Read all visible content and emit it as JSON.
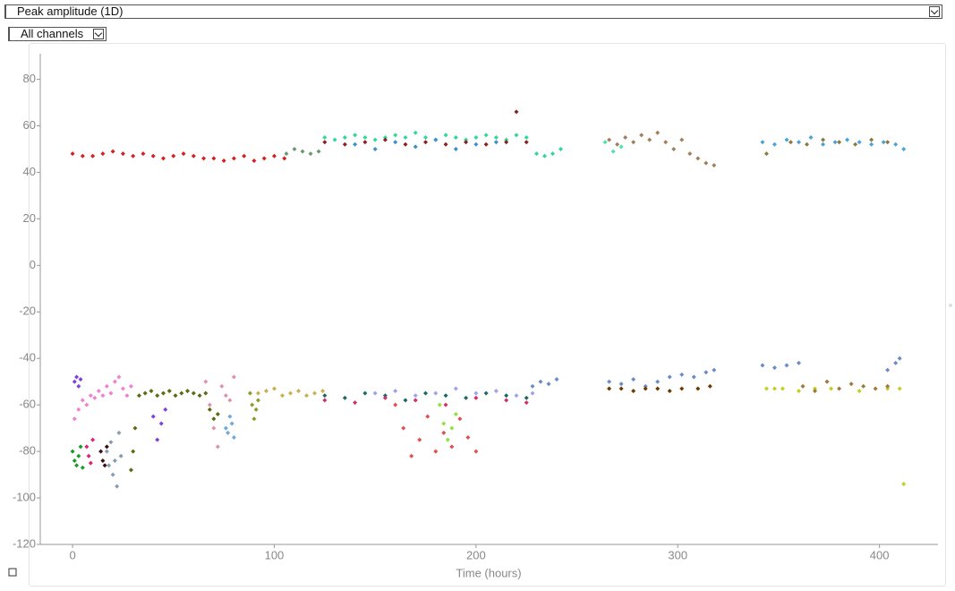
{
  "controls": {
    "measure": "Peak amplitude (1D)",
    "channels": "All channels"
  },
  "chart_data": {
    "type": "scatter",
    "x_label": "Time (hours)",
    "xlim": [
      -16,
      429
    ],
    "ylim": [
      -120,
      91
    ],
    "xticks": [
      0,
      100,
      200,
      300,
      400
    ],
    "yticks": [
      -120,
      -100,
      -80,
      -60,
      -40,
      -20,
      0,
      20,
      40,
      60,
      80
    ],
    "grid": false,
    "series": [
      {
        "color": "#d42020",
        "x": [
          0,
          5,
          10,
          15,
          20,
          25,
          30,
          35,
          40,
          45,
          50,
          55,
          60,
          65,
          70,
          75,
          80,
          85,
          90,
          95,
          100,
          105
        ],
        "values": [
          48,
          47,
          47,
          48,
          49,
          48,
          47,
          48,
          47,
          46,
          47,
          48,
          47,
          46,
          46,
          45,
          46,
          47,
          45,
          46,
          47,
          46
        ]
      },
      {
        "color": "#6a9a70",
        "x": [
          106,
          110,
          114,
          118,
          122
        ],
        "values": [
          48,
          50,
          49,
          48,
          49
        ]
      },
      {
        "color": "#2fd89a",
        "x": [
          125,
          130,
          135,
          140,
          145,
          150,
          155,
          160,
          165,
          170,
          175,
          180,
          185,
          190,
          195,
          200,
          205,
          210,
          215,
          220,
          225,
          230,
          234,
          238,
          242
        ],
        "values": [
          55,
          54,
          55,
          56,
          55,
          54,
          55,
          56,
          55,
          57,
          55,
          54,
          56,
          55,
          54,
          55,
          56,
          55,
          54,
          56,
          55,
          48,
          47,
          48,
          50
        ]
      },
      {
        "color": "#8b2020",
        "x": [
          125,
          135,
          145,
          155,
          165,
          175,
          185,
          195,
          205,
          215,
          220,
          225
        ],
        "values": [
          53,
          52,
          53,
          54,
          52,
          53,
          52,
          53,
          52,
          53,
          66,
          53
        ]
      },
      {
        "color": "#3a8fd0",
        "x": [
          140,
          150,
          160,
          170,
          180,
          190,
          200,
          210
        ],
        "values": [
          52,
          50,
          53,
          51,
          54,
          50,
          52,
          53
        ]
      },
      {
        "color": "#a0805a",
        "x": [
          266,
          270,
          274,
          278,
          282,
          286,
          290,
          294,
          298,
          302,
          306,
          310,
          314,
          318
        ],
        "values": [
          54,
          52,
          55,
          53,
          56,
          54,
          57,
          53,
          50,
          54,
          48,
          46,
          44,
          43
        ]
      },
      {
        "color": "#50e0b0",
        "x": [
          264,
          268,
          272
        ],
        "values": [
          53,
          49,
          51
        ]
      },
      {
        "color": "#4aa3d4",
        "x": [
          342,
          348,
          354,
          360,
          366,
          372,
          378,
          384,
          390,
          396,
          402,
          408,
          412
        ],
        "values": [
          53,
          52,
          54,
          53,
          55,
          52,
          53,
          54,
          53,
          52,
          53,
          52,
          50
        ]
      },
      {
        "color": "#8a7a40",
        "x": [
          344,
          356,
          364,
          372,
          380,
          388,
          396,
          404
        ],
        "values": [
          48,
          53,
          52,
          54,
          53,
          52,
          54,
          53
        ]
      },
      {
        "color": "#1a9a2a",
        "x": [
          0,
          1,
          2,
          3,
          4,
          5
        ],
        "values": [
          -80,
          -84,
          -86,
          -82,
          -78,
          -87
        ]
      },
      {
        "color": "#8040e0",
        "x": [
          1,
          2,
          3,
          4,
          40,
          42,
          44,
          46
        ],
        "values": [
          -50,
          -48,
          -52,
          -49,
          -65,
          -75,
          -68,
          -62
        ]
      },
      {
        "color": "#f080d0",
        "x": [
          1,
          3,
          5,
          7,
          9,
          11,
          13,
          15,
          17,
          19,
          21,
          23,
          25,
          27,
          29
        ],
        "values": [
          -66,
          -62,
          -58,
          -60,
          -56,
          -57,
          -54,
          -56,
          -52,
          -55,
          -50,
          -48,
          -53,
          -56,
          -52
        ]
      },
      {
        "color": "#e0207a",
        "x": [
          7,
          8,
          9,
          10
        ],
        "values": [
          -78,
          -82,
          -85,
          -75
        ]
      },
      {
        "color": "#3a1010",
        "x": [
          14,
          15,
          16,
          17
        ],
        "values": [
          -80,
          -84,
          -86,
          -78
        ]
      },
      {
        "color": "#8a9ab0",
        "x": [
          17,
          18,
          19,
          20,
          21,
          22,
          23,
          24
        ],
        "values": [
          -80,
          -86,
          -76,
          -90,
          -84,
          -95,
          -72,
          -82
        ]
      },
      {
        "color": "#5a6a10",
        "x": [
          29,
          30,
          31,
          33,
          36,
          39,
          42,
          45,
          48,
          51,
          54,
          57,
          60,
          63,
          66,
          68,
          70,
          72
        ],
        "values": [
          -88,
          -80,
          -70,
          -56,
          -55,
          -54,
          -56,
          -55,
          -54,
          -56,
          -55,
          -54,
          -55,
          -56,
          -55,
          -62,
          -66,
          -64
        ]
      },
      {
        "color": "#e090b0",
        "x": [
          66,
          68,
          70,
          72,
          74,
          76,
          78,
          80
        ],
        "values": [
          -50,
          -60,
          -70,
          -78,
          -52,
          -56,
          -58,
          -48
        ]
      },
      {
        "color": "#70a8d8",
        "x": [
          76,
          77,
          78,
          79,
          80
        ],
        "values": [
          -70,
          -72,
          -65,
          -68,
          -74
        ]
      },
      {
        "color": "#8a9a30",
        "x": [
          88,
          89,
          90,
          91,
          92
        ],
        "values": [
          -55,
          -60,
          -66,
          -62,
          -58
        ]
      },
      {
        "color": "#c8b050",
        "x": [
          92,
          96,
          100,
          104,
          108,
          112,
          116,
          120,
          124
        ],
        "values": [
          -55,
          -54,
          -53,
          -56,
          -55,
          -54,
          -56,
          -55,
          -54
        ]
      },
      {
        "color": "#1a6a60",
        "x": [
          125,
          135,
          145,
          155,
          165,
          175,
          185,
          195,
          205,
          215,
          225
        ],
        "values": [
          -56,
          -57,
          -55,
          -56,
          -58,
          -55,
          -56,
          -57,
          -55,
          -56,
          -57
        ]
      },
      {
        "color": "#a0a0f0",
        "x": [
          150,
          160,
          170,
          180,
          190,
          200,
          210,
          220,
          228
        ],
        "values": [
          -55,
          -54,
          -56,
          -55,
          -53,
          -55,
          -54,
          -56,
          -55
        ]
      },
      {
        "color": "#d0306a",
        "x": [
          125,
          140,
          155,
          170,
          185,
          200,
          215,
          225
        ],
        "values": [
          -58,
          -59,
          -57,
          -58,
          -60,
          -57,
          -58,
          -59
        ]
      },
      {
        "color": "#e05050",
        "x": [
          160,
          164,
          168,
          172,
          176,
          180,
          184,
          188,
          192,
          196,
          200
        ],
        "values": [
          -60,
          -70,
          -82,
          -75,
          -65,
          -80,
          -72,
          -78,
          -66,
          -74,
          -80
        ]
      },
      {
        "color": "#90e040",
        "x": [
          182,
          184,
          186,
          188,
          190
        ],
        "values": [
          -60,
          -68,
          -75,
          -70,
          -64
        ]
      },
      {
        "color": "#6a8ac8",
        "x": [
          228,
          232,
          236,
          240,
          266,
          272,
          278,
          284,
          290,
          296,
          302,
          308,
          314,
          318,
          342,
          348,
          354,
          360,
          404,
          408,
          410
        ],
        "values": [
          -52,
          -50,
          -51,
          -49,
          -50,
          -51,
          -49,
          -52,
          -50,
          -48,
          -47,
          -48,
          -46,
          -45,
          -43,
          -44,
          -43,
          -42,
          -45,
          -42,
          -40
        ]
      },
      {
        "color": "#6a3a00",
        "x": [
          266,
          272,
          278,
          284,
          290,
          296,
          302,
          310,
          316
        ],
        "values": [
          -53,
          -53,
          -54,
          -53,
          -53,
          -54,
          -53,
          -53,
          -52
        ]
      },
      {
        "color": "#c0d020",
        "x": [
          344,
          348,
          352,
          360,
          368,
          376,
          390,
          404,
          410,
          412
        ],
        "values": [
          -53,
          -53,
          -53,
          -54,
          -53,
          -53,
          -54,
          -53,
          -53,
          -94
        ]
      },
      {
        "color": "#a0783a",
        "x": [
          362,
          368,
          374,
          380,
          386,
          392,
          398,
          404
        ],
        "values": [
          -52,
          -54,
          -50,
          -53,
          -51,
          -52,
          -53,
          -52
        ]
      }
    ]
  }
}
